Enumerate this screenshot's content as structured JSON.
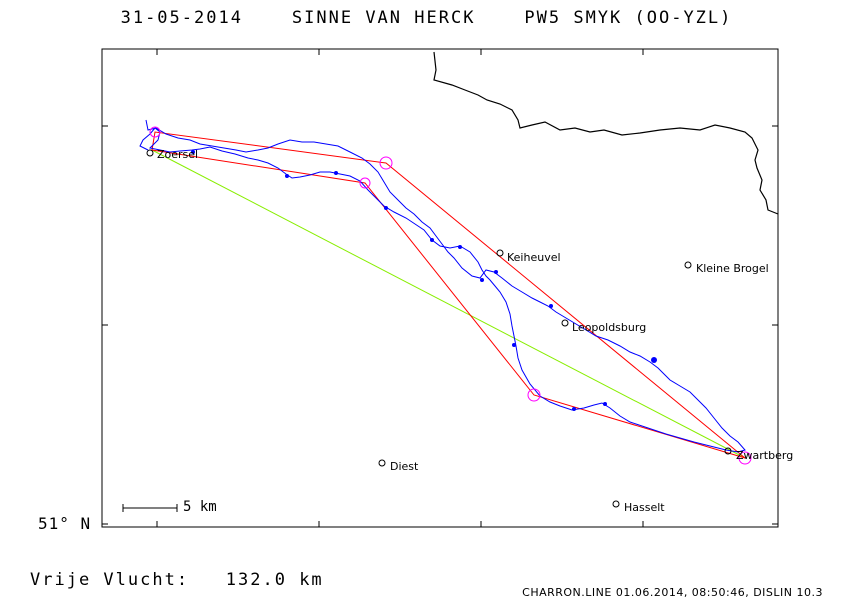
{
  "header": {
    "date": "31-05-2014",
    "pilot": "SINNE VAN HERCK",
    "aircraft": "PW5 SMYK (OO-YZL)"
  },
  "map": {
    "latitude_label": "51° N",
    "scale_label": "5 km",
    "distance_label": "Vrije Vlucht:",
    "distance_value": "132.0 km",
    "footer": "CHARRON.LINE 01.06.2014, 08:50:46, DISLIN 10.3",
    "colors": {
      "track": "#0000ff",
      "task": "#ff0000",
      "closing_leg": "#88ee00",
      "turnpoint": "#ff00ff",
      "border": "#000000"
    },
    "towns": [
      {
        "name": "Zoersel"
      },
      {
        "name": "Keiheuvel"
      },
      {
        "name": "Kleine Brogel"
      },
      {
        "name": "Leopoldsburg"
      },
      {
        "name": "Diest"
      },
      {
        "name": "Hasselt"
      },
      {
        "name": "Zwartberg"
      }
    ]
  }
}
